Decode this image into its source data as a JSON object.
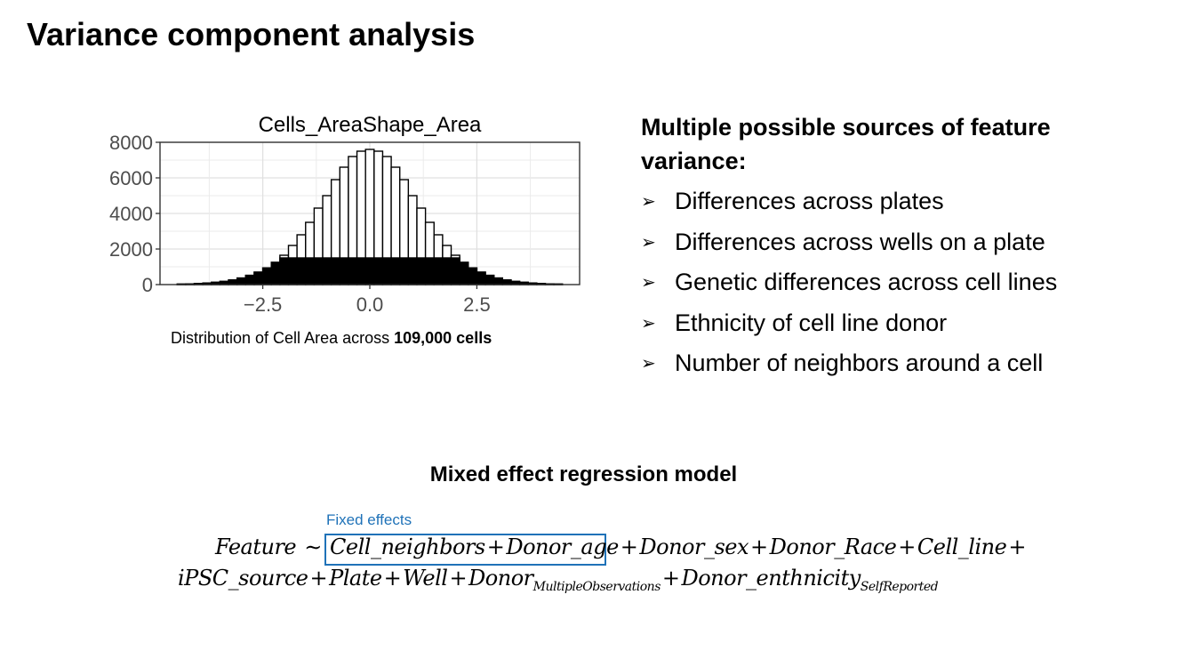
{
  "slide": {
    "title": "Variance component analysis"
  },
  "chart_caption": {
    "prefix": "Distribution of Cell Area across ",
    "bold": "109,000 cells"
  },
  "sources": {
    "heading": "Multiple possible sources of feature variance:",
    "bullet_glyph": "➢",
    "items": [
      "Differences across plates",
      "Differences across wells on a plate",
      "Genetic differences across cell lines",
      "Ethnicity of cell line donor",
      "Number of neighbors around a cell"
    ]
  },
  "model": {
    "title": "Mixed effect regression model",
    "fixed_effects_label": "Fixed effects",
    "box_color": "#1f72b8",
    "line1": {
      "lhs": "Feature",
      "tilde": "∼",
      "term1": "Cell_neighbors",
      "plus": "+",
      "term2": "Donor_age",
      "term3": "Donor_sex",
      "term4": "Donor_Race",
      "term5": "Cell_line"
    },
    "line2": {
      "term1": "iPSC_source",
      "term2": "Plate",
      "term3": "Well",
      "term4": "Donor",
      "term4_sub": "MultipleObservations",
      "term5": "Donor_enthnicity",
      "term5_sub": "SelfReported"
    }
  },
  "chart_data": {
    "type": "bar",
    "title": "Cells_AreaShape_Area",
    "xlabel": "",
    "ylabel": "",
    "xlim": [
      -4.9,
      4.9
    ],
    "ylim": [
      0,
      8000
    ],
    "xticks": [
      -2.5,
      0.0,
      2.5
    ],
    "xtick_labels": [
      "−2.5",
      "0.0",
      "2.5"
    ],
    "yticks": [
      0,
      2000,
      4000,
      6000,
      8000
    ],
    "ytick_labels": [
      "0",
      "2000",
      "4000",
      "6000",
      "8000"
    ],
    "grid": true,
    "bin_width": 0.2,
    "bin_centers": [
      -4.4,
      -4.2,
      -4.0,
      -3.8,
      -3.6,
      -3.4,
      -3.2,
      -3.0,
      -2.8,
      -2.6,
      -2.4,
      -2.2,
      -2.0,
      -1.8,
      -1.6,
      -1.4,
      -1.2,
      -1.0,
      -0.8,
      -0.6,
      -0.4,
      -0.2,
      0.0,
      0.2,
      0.4,
      0.6,
      0.8,
      1.0,
      1.2,
      1.4,
      1.6,
      1.8,
      2.0,
      2.2,
      2.4,
      2.6,
      2.8,
      3.0,
      3.2,
      3.4,
      3.6,
      3.8,
      4.0,
      4.2,
      4.4
    ],
    "series": [
      {
        "values": [
          30,
          40,
          60,
          90,
          130,
          180,
          260,
          370,
          520,
          700,
          940,
          1250,
          1650,
          2200,
          2800,
          3500,
          4300,
          5000,
          5900,
          6600,
          7200,
          7500,
          7600,
          7500,
          7200,
          6600,
          5900,
          5000,
          4300,
          3500,
          2800,
          2200,
          1650,
          1250,
          940,
          700,
          520,
          370,
          260,
          180,
          130,
          90,
          60,
          40,
          30
        ],
        "fill": "#ffffff"
      },
      {
        "values": [
          30,
          40,
          60,
          90,
          130,
          180,
          260,
          370,
          520,
          700,
          940,
          1250,
          1500,
          1500,
          1500,
          1500,
          1500,
          1500,
          1500,
          1500,
          1500,
          1500,
          1500,
          1500,
          1500,
          1500,
          1500,
          1500,
          1500,
          1500,
          1500,
          1500,
          1500,
          1250,
          940,
          700,
          520,
          370,
          260,
          180,
          130,
          90,
          60,
          40,
          30
        ],
        "fill": "#000000"
      }
    ]
  }
}
